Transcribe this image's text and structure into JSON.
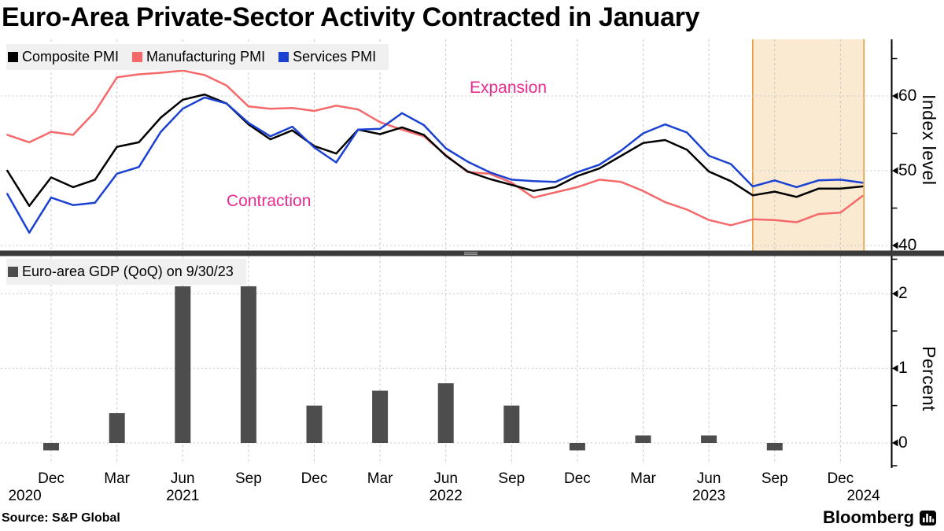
{
  "title": "Euro-Area Private-Sector Activity Contracted in January",
  "source": "Source: S&P Global",
  "brand": {
    "name": "Bloomberg",
    "icon": "bar-chart-logo-icon"
  },
  "annotations": {
    "expansion": "Expansion",
    "contraction": "Contraction"
  },
  "top_legend": [
    {
      "label": "Composite PMI",
      "color": "#000000"
    },
    {
      "label": "Manufacturing PMI",
      "color": "#F5696B"
    },
    {
      "label": "Services PMI",
      "color": "#1B41D3"
    }
  ],
  "bottom_legend": [
    {
      "label": "Euro-area GDP (QoQ) on 9/30/23",
      "color": "#4D4D4D"
    }
  ],
  "right_axis_top": {
    "title": "Index level",
    "major_ticks": [
      60,
      50,
      40
    ],
    "minor_ticks": [
      65,
      55,
      45
    ]
  },
  "right_axis_bottom": {
    "title": "Percent",
    "major_ticks": [
      2,
      1,
      0
    ],
    "minor_ticks": [
      1.5,
      0.5
    ]
  },
  "x_axis": {
    "ticks": [
      {
        "label": "Dec",
        "m": 2
      },
      {
        "label": "Mar",
        "m": 5
      },
      {
        "label": "Jun",
        "m": 8
      },
      {
        "label": "Sep",
        "m": 11
      },
      {
        "label": "Dec",
        "m": 14
      },
      {
        "label": "Mar",
        "m": 17
      },
      {
        "label": "Jun",
        "m": 20
      },
      {
        "label": "Sep",
        "m": 23
      },
      {
        "label": "Dec",
        "m": 26
      },
      {
        "label": "Mar",
        "m": 29
      },
      {
        "label": "Jun",
        "m": 32
      },
      {
        "label": "Sep",
        "m": 35
      },
      {
        "label": "Dec",
        "m": 38
      }
    ],
    "years": [
      {
        "label": "2020",
        "m": 0.8
      },
      {
        "label": "2021",
        "m": 8
      },
      {
        "label": "2022",
        "m": 20
      },
      {
        "label": "2023",
        "m": 32
      },
      {
        "label": "2024",
        "m": 39.05
      }
    ]
  },
  "highlight_band": {
    "from_month_index": 34,
    "to_month_index": 39
  },
  "colors": {
    "composite": "#000000",
    "manufacturing": "#F5696B",
    "services": "#1B41D3",
    "bars": "#4D4D4D",
    "band_fill": "#FBEAD2",
    "band_edge": "#E39B3C",
    "annotation": "#E82B8F",
    "grid": "#C9C9C9",
    "separator": "#3B3B3B",
    "legend_bg": "#F0F0F0",
    "axis": "#000000"
  },
  "chart_data": [
    {
      "type": "line",
      "panel": "top",
      "ylabel": "Index level",
      "ylim": [
        39,
        67.5
      ],
      "yticks": [
        40,
        50,
        60
      ],
      "grid": true,
      "legend_position": "top-left",
      "annotations": [
        {
          "text": "Expansion",
          "region": "above 50"
        },
        {
          "text": "Contraction",
          "region": "below 50"
        }
      ],
      "highlight_region": {
        "from": "2023-08",
        "to": "2024-01"
      },
      "x": [
        "2020-10",
        "2020-11",
        "2020-12",
        "2021-01",
        "2021-02",
        "2021-03",
        "2021-04",
        "2021-05",
        "2021-06",
        "2021-07",
        "2021-08",
        "2021-09",
        "2021-10",
        "2021-11",
        "2021-12",
        "2022-01",
        "2022-02",
        "2022-03",
        "2022-04",
        "2022-05",
        "2022-06",
        "2022-07",
        "2022-08",
        "2022-09",
        "2022-10",
        "2022-11",
        "2022-12",
        "2023-01",
        "2023-02",
        "2023-03",
        "2023-04",
        "2023-05",
        "2023-06",
        "2023-07",
        "2023-08",
        "2023-09",
        "2023-10",
        "2023-11",
        "2023-12",
        "2024-01"
      ],
      "series": [
        {
          "name": "Composite PMI",
          "color": "#000000",
          "values": [
            50.0,
            45.3,
            49.1,
            47.8,
            48.8,
            53.2,
            53.8,
            57.1,
            59.5,
            60.2,
            59.0,
            56.2,
            54.2,
            55.4,
            53.3,
            52.3,
            55.5,
            54.9,
            55.8,
            54.8,
            52.0,
            49.9,
            48.9,
            48.1,
            47.3,
            47.8,
            49.3,
            50.3,
            52.0,
            53.7,
            54.1,
            52.8,
            49.9,
            48.6,
            46.7,
            47.2,
            46.5,
            47.6,
            47.6,
            47.9
          ]
        },
        {
          "name": "Manufacturing PMI",
          "color": "#F5696B",
          "values": [
            54.8,
            53.8,
            55.2,
            54.8,
            57.9,
            62.5,
            62.9,
            63.1,
            63.4,
            62.8,
            61.4,
            58.6,
            58.3,
            58.4,
            58.0,
            58.7,
            58.2,
            56.5,
            55.5,
            54.6,
            52.1,
            49.8,
            49.6,
            48.4,
            46.4,
            47.1,
            47.8,
            48.8,
            48.5,
            47.3,
            45.8,
            44.8,
            43.4,
            42.7,
            43.5,
            43.4,
            43.1,
            44.2,
            44.4,
            46.6
          ]
        },
        {
          "name": "Services PMI",
          "color": "#1B41D3",
          "values": [
            46.9,
            41.7,
            46.4,
            45.4,
            45.7,
            49.6,
            50.5,
            55.2,
            58.3,
            59.8,
            59.0,
            56.4,
            54.6,
            55.9,
            53.1,
            51.1,
            55.5,
            55.6,
            57.7,
            56.1,
            53.0,
            51.2,
            49.8,
            48.8,
            48.6,
            48.5,
            49.8,
            50.8,
            52.7,
            55.0,
            56.2,
            55.1,
            52.0,
            50.9,
            47.9,
            48.7,
            47.8,
            48.7,
            48.8,
            48.4
          ]
        }
      ]
    },
    {
      "type": "bar",
      "panel": "bottom",
      "name": "Euro-area GDP (QoQ) on 9/30/23",
      "ylabel": "Percent",
      "ylim": [
        -0.5,
        2.5
      ],
      "yticks": [
        0,
        1,
        2
      ],
      "grid": true,
      "bar_color": "#4D4D4D",
      "categories": [
        "Q4 2020",
        "Q1 2021",
        "Q2 2021",
        "Q3 2021",
        "Q4 2021",
        "Q1 2022",
        "Q2 2022",
        "Q3 2022",
        "Q4 2022",
        "Q1 2023",
        "Q2 2023",
        "Q3 2023"
      ],
      "month_index": [
        2,
        5,
        8,
        11,
        14,
        17,
        20,
        23,
        26,
        29,
        32,
        35
      ],
      "values": [
        -0.1,
        0.4,
        2.1,
        2.1,
        0.5,
        0.7,
        0.8,
        0.5,
        -0.1,
        0.1,
        0.1,
        -0.1
      ]
    }
  ]
}
